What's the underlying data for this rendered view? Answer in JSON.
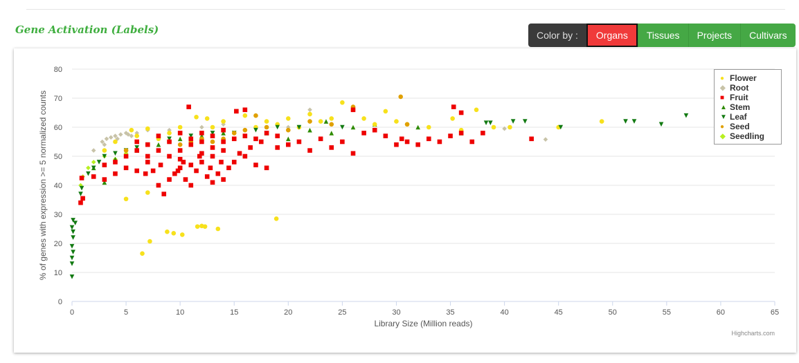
{
  "header": {
    "title": "Gene Activation (Labels)",
    "color_by_label": "Color by :",
    "buttons": [
      "Organs",
      "Tissues",
      "Projects",
      "Cultivars"
    ],
    "active": "Organs"
  },
  "credits": "Highcharts.com",
  "chart_data": {
    "type": "scatter",
    "xlabel": "Library Size (Million reads)",
    "ylabel": "% of genes with expression >= 5 normalized counts",
    "xlim": [
      0,
      65
    ],
    "ylim": [
      0,
      80
    ],
    "xticks": [
      0,
      5,
      10,
      15,
      20,
      25,
      30,
      35,
      40,
      45,
      50,
      55,
      60,
      65
    ],
    "yticks": [
      0,
      10,
      20,
      30,
      40,
      50,
      60,
      70,
      80
    ],
    "legend_position": "top-right",
    "series": [
      {
        "name": "Flower",
        "color": "#f7e11c",
        "symbol": "circle",
        "points": [
          [
            5,
            35.3
          ],
          [
            6.5,
            16.5
          ],
          [
            7,
            37.5
          ],
          [
            7.2,
            20.7
          ],
          [
            8.8,
            24
          ],
          [
            9.4,
            23.5
          ],
          [
            10.2,
            23
          ],
          [
            11.6,
            25.8
          ],
          [
            12,
            26
          ],
          [
            12.3,
            25.8
          ],
          [
            13.5,
            25
          ],
          [
            18.9,
            28.5
          ],
          [
            49,
            62
          ],
          [
            45,
            60
          ],
          [
            40.5,
            60
          ],
          [
            39,
            60
          ],
          [
            35.2,
            63
          ],
          [
            37.4,
            66
          ],
          [
            25,
            68.5
          ],
          [
            29,
            65.5
          ],
          [
            5.5,
            59
          ],
          [
            7,
            59.5
          ],
          [
            9,
            58
          ],
          [
            11.5,
            63.5
          ],
          [
            12.5,
            63
          ],
          [
            14,
            62
          ],
          [
            16,
            64
          ],
          [
            18,
            62
          ],
          [
            20,
            63
          ],
          [
            22,
            64.5
          ],
          [
            24,
            63
          ],
          [
            26,
            66
          ],
          [
            28,
            61
          ],
          [
            31,
            61
          ],
          [
            33,
            60
          ],
          [
            36,
            59
          ],
          [
            3,
            52
          ],
          [
            4,
            55
          ],
          [
            6,
            57
          ],
          [
            8,
            56
          ],
          [
            10,
            60
          ],
          [
            13,
            60
          ],
          [
            15,
            58
          ],
          [
            17,
            60
          ],
          [
            19,
            61
          ],
          [
            21,
            60
          ],
          [
            23,
            62
          ],
          [
            27,
            63
          ],
          [
            30,
            62
          ]
        ]
      },
      {
        "name": "Root",
        "color": "#c8c3a8",
        "symbol": "diamond",
        "points": [
          [
            2,
            52
          ],
          [
            2.8,
            55
          ],
          [
            3.2,
            56
          ],
          [
            3.6,
            56.5
          ],
          [
            4,
            57
          ],
          [
            4.5,
            57.5
          ],
          [
            5,
            58
          ],
          [
            5.5,
            57
          ],
          [
            6,
            58
          ],
          [
            7,
            59
          ],
          [
            9,
            59
          ],
          [
            12,
            60
          ],
          [
            14,
            61
          ],
          [
            20,
            60
          ],
          [
            22,
            66
          ],
          [
            40,
            59.5
          ],
          [
            43.8,
            55.8
          ],
          [
            3,
            54
          ],
          [
            4.2,
            56
          ],
          [
            5.2,
            57.5
          ]
        ]
      },
      {
        "name": "Fruit",
        "color": "#ee0000",
        "symbol": "square",
        "points": [
          [
            0.8,
            34
          ],
          [
            1,
            35.5
          ],
          [
            0.9,
            42.5
          ],
          [
            2,
            43
          ],
          [
            3,
            42
          ],
          [
            4,
            44
          ],
          [
            5,
            46
          ],
          [
            6,
            45
          ],
          [
            7,
            48
          ],
          [
            8,
            40
          ],
          [
            8.5,
            37
          ],
          [
            9,
            42
          ],
          [
            9.5,
            44
          ],
          [
            10,
            46
          ],
          [
            10.5,
            42
          ],
          [
            10.8,
            67
          ],
          [
            11,
            40
          ],
          [
            11.5,
            45
          ],
          [
            12,
            48
          ],
          [
            12.5,
            43
          ],
          [
            13,
            41
          ],
          [
            13.5,
            44
          ],
          [
            14,
            42
          ],
          [
            14.5,
            46
          ],
          [
            15,
            48
          ],
          [
            15.5,
            51
          ],
          [
            16,
            50
          ],
          [
            17,
            47
          ],
          [
            18,
            46
          ],
          [
            19,
            53
          ],
          [
            20,
            54
          ],
          [
            21,
            55
          ],
          [
            22,
            52
          ],
          [
            23,
            56
          ],
          [
            24,
            53
          ],
          [
            25,
            55
          ],
          [
            26,
            51
          ],
          [
            27,
            58
          ],
          [
            28,
            59
          ],
          [
            29,
            57
          ],
          [
            30,
            54
          ],
          [
            30.5,
            56
          ],
          [
            31,
            55
          ],
          [
            32,
            54
          ],
          [
            33,
            56
          ],
          [
            34,
            55
          ],
          [
            35,
            57
          ],
          [
            35.3,
            67
          ],
          [
            36,
            65
          ],
          [
            36,
            58
          ],
          [
            37,
            55
          ],
          [
            38,
            58
          ],
          [
            42.5,
            56
          ],
          [
            15.2,
            65.5
          ],
          [
            16,
            66
          ],
          [
            26,
            66
          ],
          [
            7,
            50
          ],
          [
            8,
            52
          ],
          [
            9,
            50
          ],
          [
            10,
            52
          ],
          [
            11,
            54
          ],
          [
            12,
            55
          ],
          [
            13,
            53
          ],
          [
            14,
            55
          ],
          [
            15,
            56
          ],
          [
            16,
            57
          ],
          [
            17,
            56
          ],
          [
            18,
            58
          ],
          [
            19,
            57
          ],
          [
            6,
            52
          ],
          [
            5,
            50
          ],
          [
            4,
            48
          ],
          [
            3,
            47
          ],
          [
            10,
            49
          ],
          [
            11,
            47
          ],
          [
            12,
            51
          ],
          [
            13,
            50
          ],
          [
            14,
            52
          ],
          [
            9,
            55
          ],
          [
            8,
            57
          ],
          [
            10,
            58
          ],
          [
            11,
            56
          ],
          [
            12,
            58
          ],
          [
            13,
            57
          ],
          [
            14,
            59
          ],
          [
            7,
            54
          ],
          [
            6,
            55
          ],
          [
            16.5,
            53
          ],
          [
            17.5,
            55
          ],
          [
            9.8,
            45
          ],
          [
            10.3,
            48
          ],
          [
            11.8,
            50
          ],
          [
            12.8,
            46
          ],
          [
            13.8,
            48
          ],
          [
            7.5,
            45
          ],
          [
            8.2,
            47
          ],
          [
            6.8,
            44
          ]
        ]
      },
      {
        "name": "Stem",
        "color": "#2e8b00",
        "symbol": "triangle",
        "points": [
          [
            2,
            46
          ],
          [
            3,
            41
          ],
          [
            4,
            49
          ],
          [
            6,
            52
          ],
          [
            8,
            54
          ],
          [
            10,
            56
          ],
          [
            12,
            57
          ],
          [
            14,
            58
          ],
          [
            16,
            57
          ],
          [
            18,
            58
          ],
          [
            20,
            56
          ],
          [
            22,
            59
          ],
          [
            23.5,
            62
          ],
          [
            24,
            58
          ],
          [
            26,
            60
          ],
          [
            28,
            61
          ],
          [
            32,
            60
          ],
          [
            36,
            58
          ]
        ]
      },
      {
        "name": "Leaf",
        "color": "#127a12",
        "symbol": "triangle-down",
        "points": [
          [
            0,
            8.5
          ],
          [
            0,
            13
          ],
          [
            0,
            15
          ],
          [
            0.1,
            17
          ],
          [
            0,
            19
          ],
          [
            0.1,
            22
          ],
          [
            0.1,
            24
          ],
          [
            0,
            25.5
          ],
          [
            0.1,
            28
          ],
          [
            0.3,
            27
          ],
          [
            0.8,
            37
          ],
          [
            0.9,
            39
          ],
          [
            51.2,
            62
          ],
          [
            52,
            62
          ],
          [
            54.5,
            61
          ],
          [
            56.8,
            64
          ],
          [
            45.2,
            60
          ],
          [
            41.9,
            62
          ],
          [
            40.8,
            62
          ],
          [
            38.3,
            61.5
          ],
          [
            38.7,
            61.5
          ],
          [
            1.5,
            44
          ],
          [
            2,
            46
          ],
          [
            2.5,
            48
          ],
          [
            3,
            50
          ],
          [
            4,
            51
          ],
          [
            5,
            52
          ],
          [
            6,
            53
          ],
          [
            7,
            54
          ],
          [
            9,
            56
          ],
          [
            11,
            57
          ],
          [
            13,
            58
          ],
          [
            15,
            58
          ],
          [
            17,
            59
          ],
          [
            19,
            60
          ],
          [
            21,
            60
          ],
          [
            25,
            60
          ]
        ]
      },
      {
        "name": "Seed",
        "color": "#e0a000",
        "symbol": "circle",
        "points": [
          [
            30.4,
            70.5
          ],
          [
            5,
            52
          ],
          [
            7,
            54
          ],
          [
            9,
            55
          ],
          [
            10,
            54
          ],
          [
            11,
            55
          ],
          [
            12,
            56
          ],
          [
            13,
            55
          ],
          [
            14,
            56
          ],
          [
            15,
            58
          ],
          [
            16,
            59
          ],
          [
            17,
            64
          ],
          [
            18,
            60
          ],
          [
            20,
            59
          ],
          [
            22,
            62
          ],
          [
            24,
            61
          ],
          [
            26,
            67
          ],
          [
            31,
            61
          ]
        ]
      },
      {
        "name": "Seedling",
        "color": "#b8f020",
        "symbol": "diamond",
        "points": [
          [
            0.8,
            40
          ],
          [
            1,
            43
          ],
          [
            1.5,
            46
          ],
          [
            2,
            48
          ],
          [
            3,
            50
          ],
          [
            5,
            51
          ],
          [
            6,
            52
          ],
          [
            4,
            49
          ]
        ]
      }
    ]
  }
}
